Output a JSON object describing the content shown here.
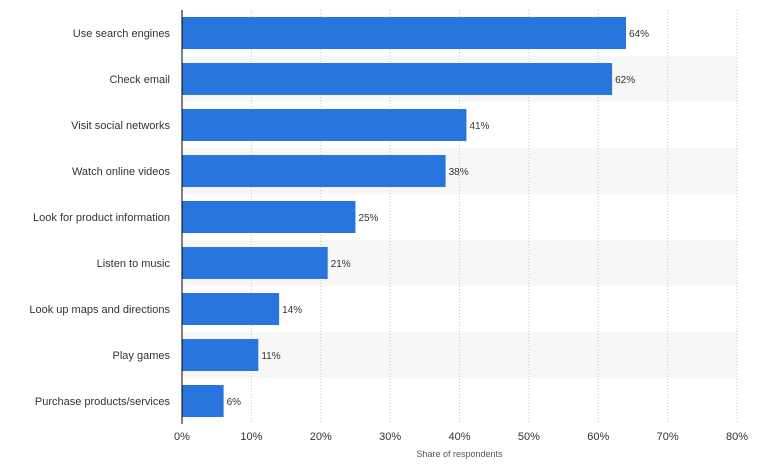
{
  "chart_data": {
    "type": "bar",
    "orientation": "horizontal",
    "categories": [
      "Use search engines",
      "Check email",
      "Visit social networks",
      "Watch online videos",
      "Look for product information",
      "Listen to music",
      "Look up maps and directions",
      "Play games",
      "Purchase products/services"
    ],
    "values": [
      64,
      62,
      41,
      38,
      25,
      21,
      14,
      11,
      6
    ],
    "data_labels": [
      "64%",
      "62%",
      "41%",
      "38%",
      "25%",
      "21%",
      "14%",
      "11%",
      "6%"
    ],
    "xlabel": "Share of respondents",
    "ylabel": "",
    "xlim": [
      0,
      80
    ],
    "x_ticks": [
      0,
      10,
      20,
      30,
      40,
      50,
      60,
      70,
      80
    ],
    "x_tick_labels": [
      "0%",
      "10%",
      "20%",
      "30%",
      "40%",
      "50%",
      "60%",
      "70%",
      "80%"
    ],
    "grid": "vertical dotted",
    "bar_color": "#2876dd",
    "band_color": "#f7f7f7"
  }
}
